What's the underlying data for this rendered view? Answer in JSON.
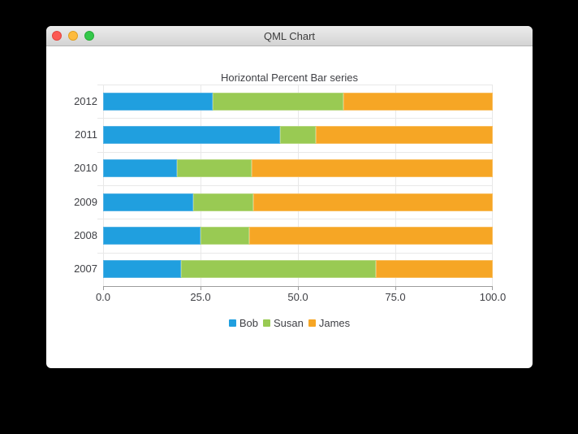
{
  "window": {
    "title": "QML Chart",
    "controls": {
      "close_color": "#fc5953",
      "minimize_color": "#fdbb3e",
      "zoom_color": "#34c84a"
    }
  },
  "chart_data": {
    "type": "bar",
    "orientation": "horizontal",
    "stacking": "percent",
    "title": "Horizontal Percent Bar series",
    "categories": [
      "2012",
      "2011",
      "2010",
      "2009",
      "2008",
      "2007"
    ],
    "series": [
      {
        "name": "Bob",
        "color": "#209fdf",
        "border_color": "#55b3e5",
        "values": [
          28.2,
          45.5,
          19.0,
          23.1,
          25.0,
          20.0
        ]
      },
      {
        "name": "Susan",
        "color": "#99ca53",
        "border_color": "#b4d77e",
        "values": [
          33.4,
          9.1,
          19.1,
          15.4,
          12.5,
          50.0
        ]
      },
      {
        "name": "James",
        "color": "#f6a625",
        "border_color": "#f9bd5d",
        "values": [
          38.4,
          45.4,
          61.9,
          61.5,
          62.5,
          30.0
        ]
      }
    ],
    "x_ticks": [
      "0.0",
      "25.0",
      "50.0",
      "75.0",
      "100.0"
    ],
    "xlim": [
      0,
      100
    ],
    "xlabel": "",
    "ylabel": "",
    "grid": true,
    "legend_position": "bottom",
    "gridline_color": "#e8e8e8",
    "axis_line_color": "#9c9c9c",
    "text_color": "#3f4045"
  }
}
